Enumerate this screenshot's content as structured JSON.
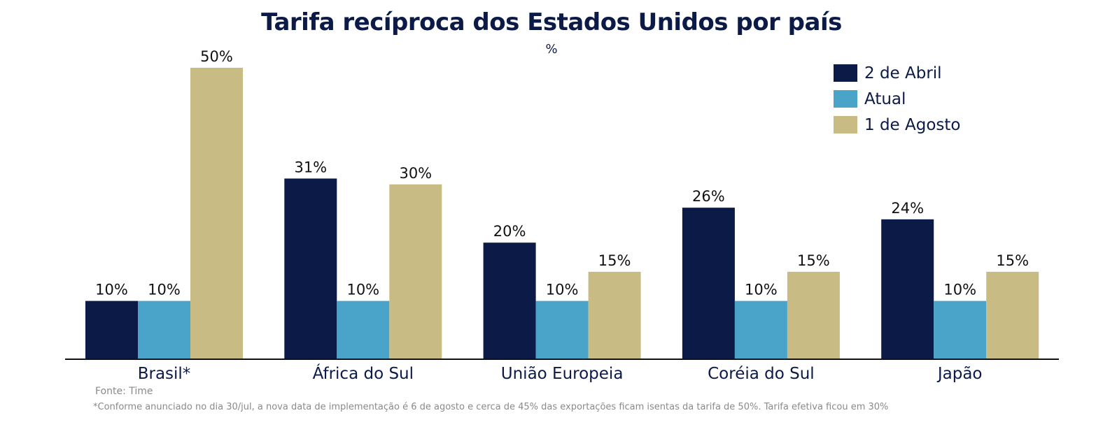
{
  "chart_data": {
    "type": "bar",
    "title": "Tarifa recíproca dos Estados Unidos por país",
    "subtitle": "%",
    "categories": [
      "Brasil*",
      "África do Sul",
      "União Europeia",
      "Coréia do Sul",
      "Japão"
    ],
    "series": [
      {
        "name": "2 de Abril",
        "color": "#0b1a47",
        "values": [
          10,
          31,
          20,
          26,
          24
        ],
        "labels": [
          "10%",
          "31%",
          "20%",
          "26%",
          "24%"
        ]
      },
      {
        "name": "Atual",
        "color": "#4aa3c8",
        "values": [
          10,
          10,
          10,
          10,
          10
        ],
        "labels": [
          "10%",
          "10%",
          "10%",
          "10%",
          "10%"
        ]
      },
      {
        "name": "1 de Agosto",
        "color": "#c9bb84",
        "values": [
          50,
          30,
          15,
          15,
          15
        ],
        "labels": [
          "50%",
          "30%",
          "15%",
          "15%",
          "15%"
        ]
      }
    ],
    "ylim": [
      0,
      50
    ],
    "grid": false,
    "legend_position": "top-right"
  },
  "source": "Fonte: Time",
  "footnote": "*Conforme anunciado no dia 30/jul, a nova data de implementação é 6 de agosto e cerca de 45% das exportações ficam isentas da tarifa de 50%. Tarifa efetiva ficou em 30%"
}
